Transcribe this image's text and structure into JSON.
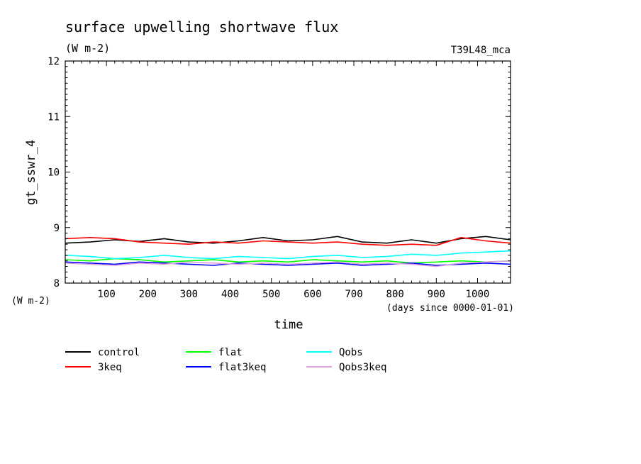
{
  "chart_data": {
    "type": "line",
    "title": "surface upwelling shortwave flux",
    "units": "(W m-2)",
    "experiment": "T39L48_mca",
    "ylabel": "gt_sswr_4",
    "ylabel_units": "(W m-2)",
    "xlabel": "time",
    "xlabel_units": "(days since 0000-01-01)",
    "xlim": [
      0,
      1080
    ],
    "ylim": [
      8,
      12
    ],
    "xticks": [
      100,
      200,
      300,
      400,
      500,
      600,
      700,
      800,
      900,
      1000
    ],
    "yticks": [
      8,
      9,
      10,
      11,
      12
    ],
    "legend_placement": "bottom",
    "series": [
      {
        "name": "control",
        "color": "#000000",
        "x": [
          0,
          60,
          120,
          180,
          240,
          300,
          360,
          420,
          480,
          540,
          600,
          660,
          720,
          780,
          840,
          900,
          960,
          1020,
          1080
        ],
        "values": [
          8.72,
          8.74,
          8.78,
          8.75,
          8.8,
          8.74,
          8.72,
          8.76,
          8.82,
          8.76,
          8.78,
          8.84,
          8.74,
          8.72,
          8.78,
          8.72,
          8.8,
          8.84,
          8.78
        ]
      },
      {
        "name": "3keq",
        "color": "#ff0000",
        "x": [
          0,
          60,
          120,
          180,
          240,
          300,
          360,
          420,
          480,
          540,
          600,
          660,
          720,
          780,
          840,
          900,
          960,
          1020,
          1080
        ],
        "values": [
          8.8,
          8.82,
          8.8,
          8.74,
          8.72,
          8.7,
          8.74,
          8.72,
          8.76,
          8.74,
          8.72,
          8.74,
          8.7,
          8.68,
          8.7,
          8.68,
          8.82,
          8.76,
          8.72
        ]
      },
      {
        "name": "flat",
        "color": "#00ff00",
        "x": [
          0,
          60,
          120,
          180,
          240,
          300,
          360,
          420,
          480,
          540,
          600,
          660,
          720,
          780,
          840,
          900,
          960,
          1020,
          1080
        ],
        "values": [
          8.42,
          8.4,
          8.44,
          8.42,
          8.38,
          8.4,
          8.42,
          8.38,
          8.4,
          8.38,
          8.42,
          8.4,
          8.38,
          8.4,
          8.36,
          8.38,
          8.4,
          8.38,
          8.4
        ]
      },
      {
        "name": "flat3keq",
        "color": "#0000ff",
        "x": [
          0,
          60,
          120,
          180,
          240,
          300,
          360,
          420,
          480,
          540,
          600,
          660,
          720,
          780,
          840,
          900,
          960,
          1020,
          1080
        ],
        "values": [
          8.38,
          8.36,
          8.34,
          8.38,
          8.36,
          8.34,
          8.32,
          8.36,
          8.34,
          8.32,
          8.34,
          8.36,
          8.32,
          8.34,
          8.36,
          8.32,
          8.34,
          8.36,
          8.34
        ]
      },
      {
        "name": "Qobs",
        "color": "#00ffff",
        "x": [
          0,
          60,
          120,
          180,
          240,
          300,
          360,
          420,
          480,
          540,
          600,
          660,
          720,
          780,
          840,
          900,
          960,
          1020,
          1080
        ],
        "values": [
          8.5,
          8.48,
          8.44,
          8.46,
          8.5,
          8.46,
          8.44,
          8.48,
          8.46,
          8.44,
          8.48,
          8.5,
          8.46,
          8.48,
          8.52,
          8.5,
          8.54,
          8.56,
          8.58
        ]
      },
      {
        "name": "Qobs3keq",
        "color": "#dda0dd",
        "x": [
          0,
          60,
          120,
          180,
          240,
          300,
          360,
          420,
          480,
          540,
          600,
          660,
          720,
          780,
          840,
          900,
          960,
          1020,
          1080
        ],
        "values": [
          8.36,
          8.34,
          8.32,
          8.36,
          8.34,
          8.38,
          8.36,
          8.34,
          8.36,
          8.34,
          8.36,
          8.38,
          8.34,
          8.36,
          8.34,
          8.3,
          8.36,
          8.38,
          8.4
        ]
      }
    ]
  }
}
